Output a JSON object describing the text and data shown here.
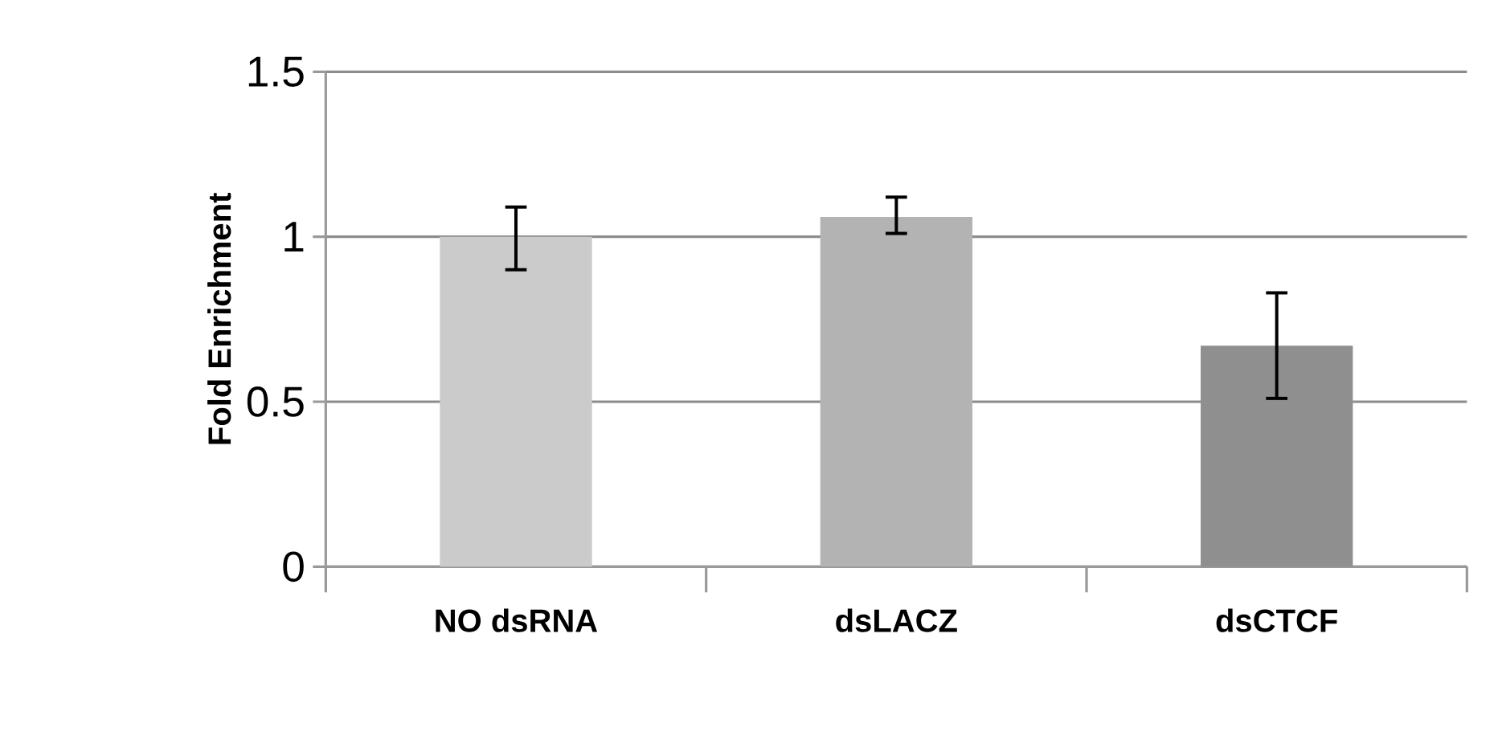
{
  "chart_data": {
    "type": "bar",
    "ylabel": "Fold Enrichment",
    "categories": [
      "NO dsRNA",
      "dsLACZ",
      "dsCTCF"
    ],
    "values": [
      1.0,
      1.06,
      0.67
    ],
    "colors": [
      "#cbcbcb",
      "#b3b3b3",
      "#8f8f8f"
    ],
    "errors": [
      [
        0.9,
        1.09
      ],
      [
        1.01,
        1.12
      ],
      [
        0.51,
        0.83
      ]
    ],
    "ylim": [
      0,
      1.5
    ],
    "yticks": [
      0,
      0.5,
      1,
      1.5
    ],
    "grid": "y"
  }
}
